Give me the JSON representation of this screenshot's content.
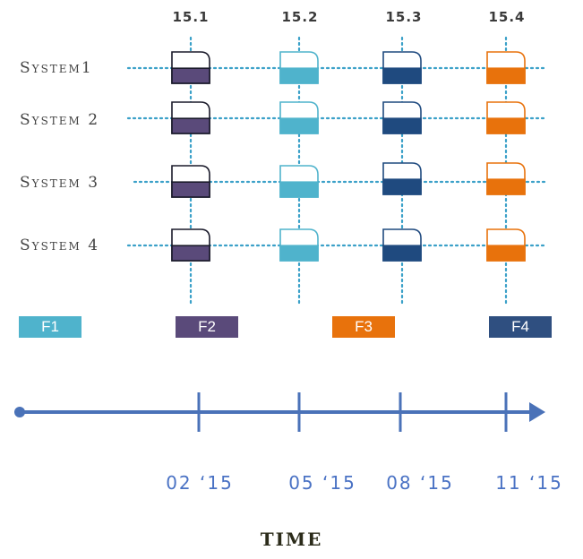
{
  "versions": [
    "15.1",
    "15.2",
    "15.3",
    "15.4"
  ],
  "systems": [
    "System1",
    "System 2",
    "System 3",
    "System 4"
  ],
  "features": [
    {
      "label": "F1",
      "color": "#4fb3cc"
    },
    {
      "label": "F2",
      "color": "#5a4a7a"
    },
    {
      "label": "F3",
      "color": "#e8720c"
    },
    {
      "label": "F4",
      "color": "#2f4f80"
    }
  ],
  "release_colors": [
    "#5a4a7a",
    "#4fb3cc",
    "#1f4a7f",
    "#e8720c"
  ],
  "timeline": {
    "dates": [
      "02 ‘15",
      "05 ‘15",
      "08 ‘15",
      "11 ‘15"
    ],
    "axis_title": "TIME",
    "line_color": "#4a72b8",
    "label_color": "#4a72c4"
  },
  "grid_color": "#3aa0c8"
}
